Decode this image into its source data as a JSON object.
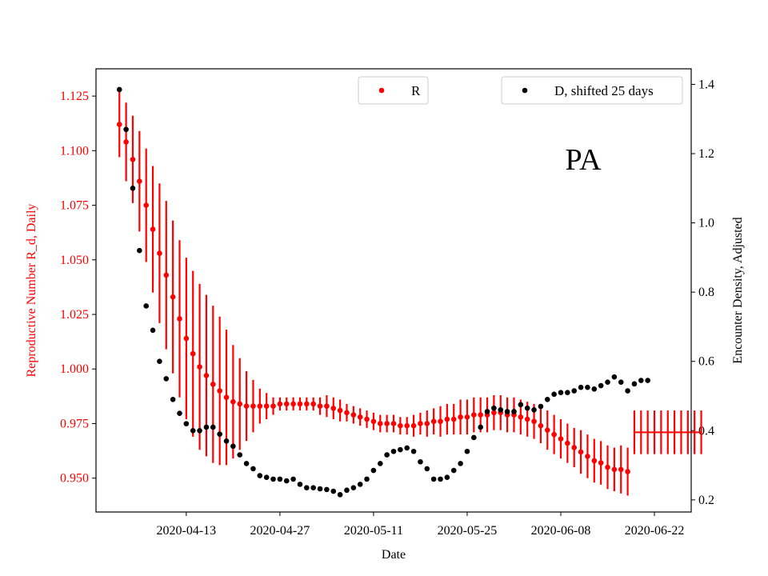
{
  "chart_data": {
    "type": "scatter",
    "annotation": "PA",
    "xlabel": "Date",
    "xtick_labels": [
      "2020-04-13",
      "2020-04-27",
      "2020-05-11",
      "2020-05-25",
      "2020-06-08",
      "2020-06-22"
    ],
    "xtick_days": [
      11,
      25,
      39,
      53,
      67,
      81
    ],
    "x_day0": "2020-04-02",
    "xlim": [
      -2.5,
      86.5
    ],
    "left_axis": {
      "label": "Reproductive Number R_d, Daily",
      "color": "#ff0000",
      "ylim": [
        0.9345,
        1.1375
      ],
      "ticks": [
        "0.950",
        "0.975",
        "1.000",
        "1.025",
        "1.050",
        "1.075",
        "1.100",
        "1.125"
      ]
    },
    "right_axis": {
      "label": "Encounter Density, Adjusted",
      "color": "#000000",
      "ylim": [
        0.165,
        1.445
      ],
      "ticks": [
        "0.2",
        "0.4",
        "0.6",
        "0.8",
        "1.0",
        "1.2",
        "1.4"
      ]
    },
    "legend": [
      {
        "label": "R",
        "color": "#ff0000",
        "position": "upper-center"
      },
      {
        "label": "D, shifted 25 days",
        "color": "#000000",
        "position": "upper-right"
      }
    ],
    "series_R": {
      "name": "R",
      "color": "#ff0000",
      "x_start": 1,
      "values": [
        1.112,
        1.104,
        1.096,
        1.086,
        1.075,
        1.064,
        1.053,
        1.043,
        1.033,
        1.023,
        1.014,
        1.007,
        1.001,
        0.997,
        0.993,
        0.99,
        0.987,
        0.985,
        0.984,
        0.983,
        0.983,
        0.983,
        0.983,
        0.983,
        0.984,
        0.984,
        0.984,
        0.984,
        0.984,
        0.984,
        0.983,
        0.983,
        0.982,
        0.981,
        0.98,
        0.979,
        0.978,
        0.977,
        0.976,
        0.975,
        0.975,
        0.975,
        0.974,
        0.974,
        0.974,
        0.975,
        0.975,
        0.976,
        0.976,
        0.977,
        0.977,
        0.978,
        0.978,
        0.979,
        0.979,
        0.979,
        0.98,
        0.98,
        0.979,
        0.979,
        0.978,
        0.977,
        0.976,
        0.974,
        0.972,
        0.97,
        0.968,
        0.966,
        0.964,
        0.962,
        0.96,
        0.958,
        0.957,
        0.955,
        0.954,
        0.954,
        0.953
      ],
      "err": [
        0.015,
        0.018,
        0.02,
        0.023,
        0.026,
        0.029,
        0.032,
        0.034,
        0.035,
        0.036,
        0.037,
        0.038,
        0.038,
        0.037,
        0.036,
        0.034,
        0.031,
        0.026,
        0.021,
        0.016,
        0.012,
        0.008,
        0.006,
        0.004,
        0.003,
        0.003,
        0.003,
        0.003,
        0.003,
        0.003,
        0.004,
        0.005,
        0.005,
        0.005,
        0.004,
        0.004,
        0.004,
        0.004,
        0.004,
        0.004,
        0.004,
        0.004,
        0.004,
        0.004,
        0.005,
        0.005,
        0.006,
        0.006,
        0.007,
        0.007,
        0.007,
        0.008,
        0.008,
        0.008,
        0.008,
        0.008,
        0.008,
        0.008,
        0.008,
        0.008,
        0.008,
        0.008,
        0.008,
        0.008,
        0.009,
        0.009,
        0.009,
        0.009,
        0.009,
        0.01,
        0.01,
        0.01,
        0.01,
        0.01,
        0.01,
        0.011,
        0.011
      ]
    },
    "series_R_forecast": {
      "name": "R, projected",
      "color": "#ff0000",
      "x": [
        78,
        79,
        80,
        81,
        82,
        83,
        84,
        85,
        86,
        87,
        88
      ],
      "value": 0.971,
      "err": 0.01
    },
    "series_D": {
      "name": "D, shifted 25 days",
      "color": "#000000",
      "x_start": 1,
      "values": [
        1.385,
        1.27,
        1.1,
        0.92,
        0.76,
        0.69,
        0.6,
        0.55,
        0.49,
        0.45,
        0.42,
        0.4,
        0.4,
        0.41,
        0.41,
        0.39,
        0.37,
        0.355,
        0.33,
        0.305,
        0.29,
        0.27,
        0.265,
        0.26,
        0.26,
        0.255,
        0.26,
        0.245,
        0.235,
        0.235,
        0.232,
        0.23,
        0.225,
        0.215,
        0.228,
        0.235,
        0.245,
        0.26,
        0.285,
        0.305,
        0.33,
        0.34,
        0.345,
        0.35,
        0.34,
        0.31,
        0.29,
        0.26,
        0.26,
        0.265,
        0.285,
        0.305,
        0.34,
        0.38,
        0.41,
        0.455,
        0.465,
        0.46,
        0.455,
        0.455,
        0.475,
        0.465,
        0.46,
        0.47,
        0.49,
        0.505,
        0.51,
        0.51,
        0.515,
        0.525,
        0.525,
        0.52,
        0.53,
        0.54,
        0.555,
        0.54,
        0.515,
        0.535,
        0.545,
        0.545
      ]
    }
  }
}
